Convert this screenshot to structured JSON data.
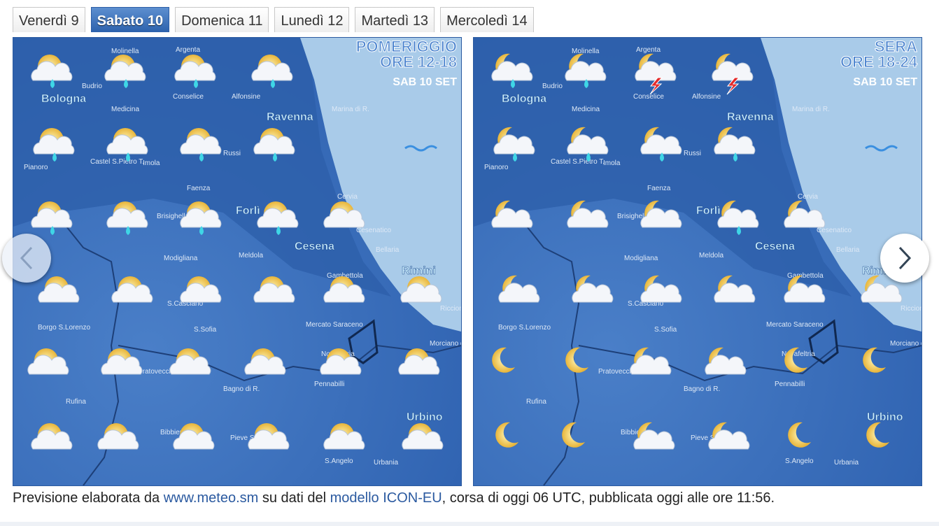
{
  "tabs": [
    "Venerdì 9",
    "Sabato 10",
    "Domenica 11",
    "Lunedì 12",
    "Martedì 13",
    "Mercoledì 14"
  ],
  "maps": [
    {
      "period": "POMERIGGIO",
      "hours": "ORE 12-18",
      "date": "SAB 10 SET"
    },
    {
      "period": "SERA",
      "hours": "ORE 18-24",
      "date": "SAB 10 SET"
    }
  ],
  "places": [
    "Molinella",
    "Argenta",
    "Budrio",
    "Bologna",
    "Medicina",
    "Conselice",
    "Alfonsine",
    "Ravenna",
    "Marina di R.",
    "Castel S.Pietro T.",
    "Imola",
    "Russi",
    "Pianoro",
    "Faenza",
    "Cervia",
    "Brisighella",
    "Forlì",
    "Cesenatico",
    "Cesena",
    "Bellaria",
    "Modigliana",
    "Meldola",
    "Rimini",
    "Gambettola",
    "S.Casciano",
    "Riccione",
    "Borgo S.Lorenzo",
    "S.Sofia",
    "Mercato Saraceno",
    "Morciano di R.",
    "Novafeltria",
    "Pratovecchio",
    "Bagno di R.",
    "Pennabilli",
    "Rufina",
    "Urbino",
    "Bibbiena",
    "Pieve S.Stefano",
    "S.Angelo",
    "Urbania"
  ],
  "caption": {
    "before": "Previsione elaborata da ",
    "link1": "www.meteo.sm",
    "middle": " su dati del ",
    "link2": "modello ICON-EU",
    "after": ", corsa di oggi 06 UTC, pubblicata oggi alle ore 11:56."
  }
}
